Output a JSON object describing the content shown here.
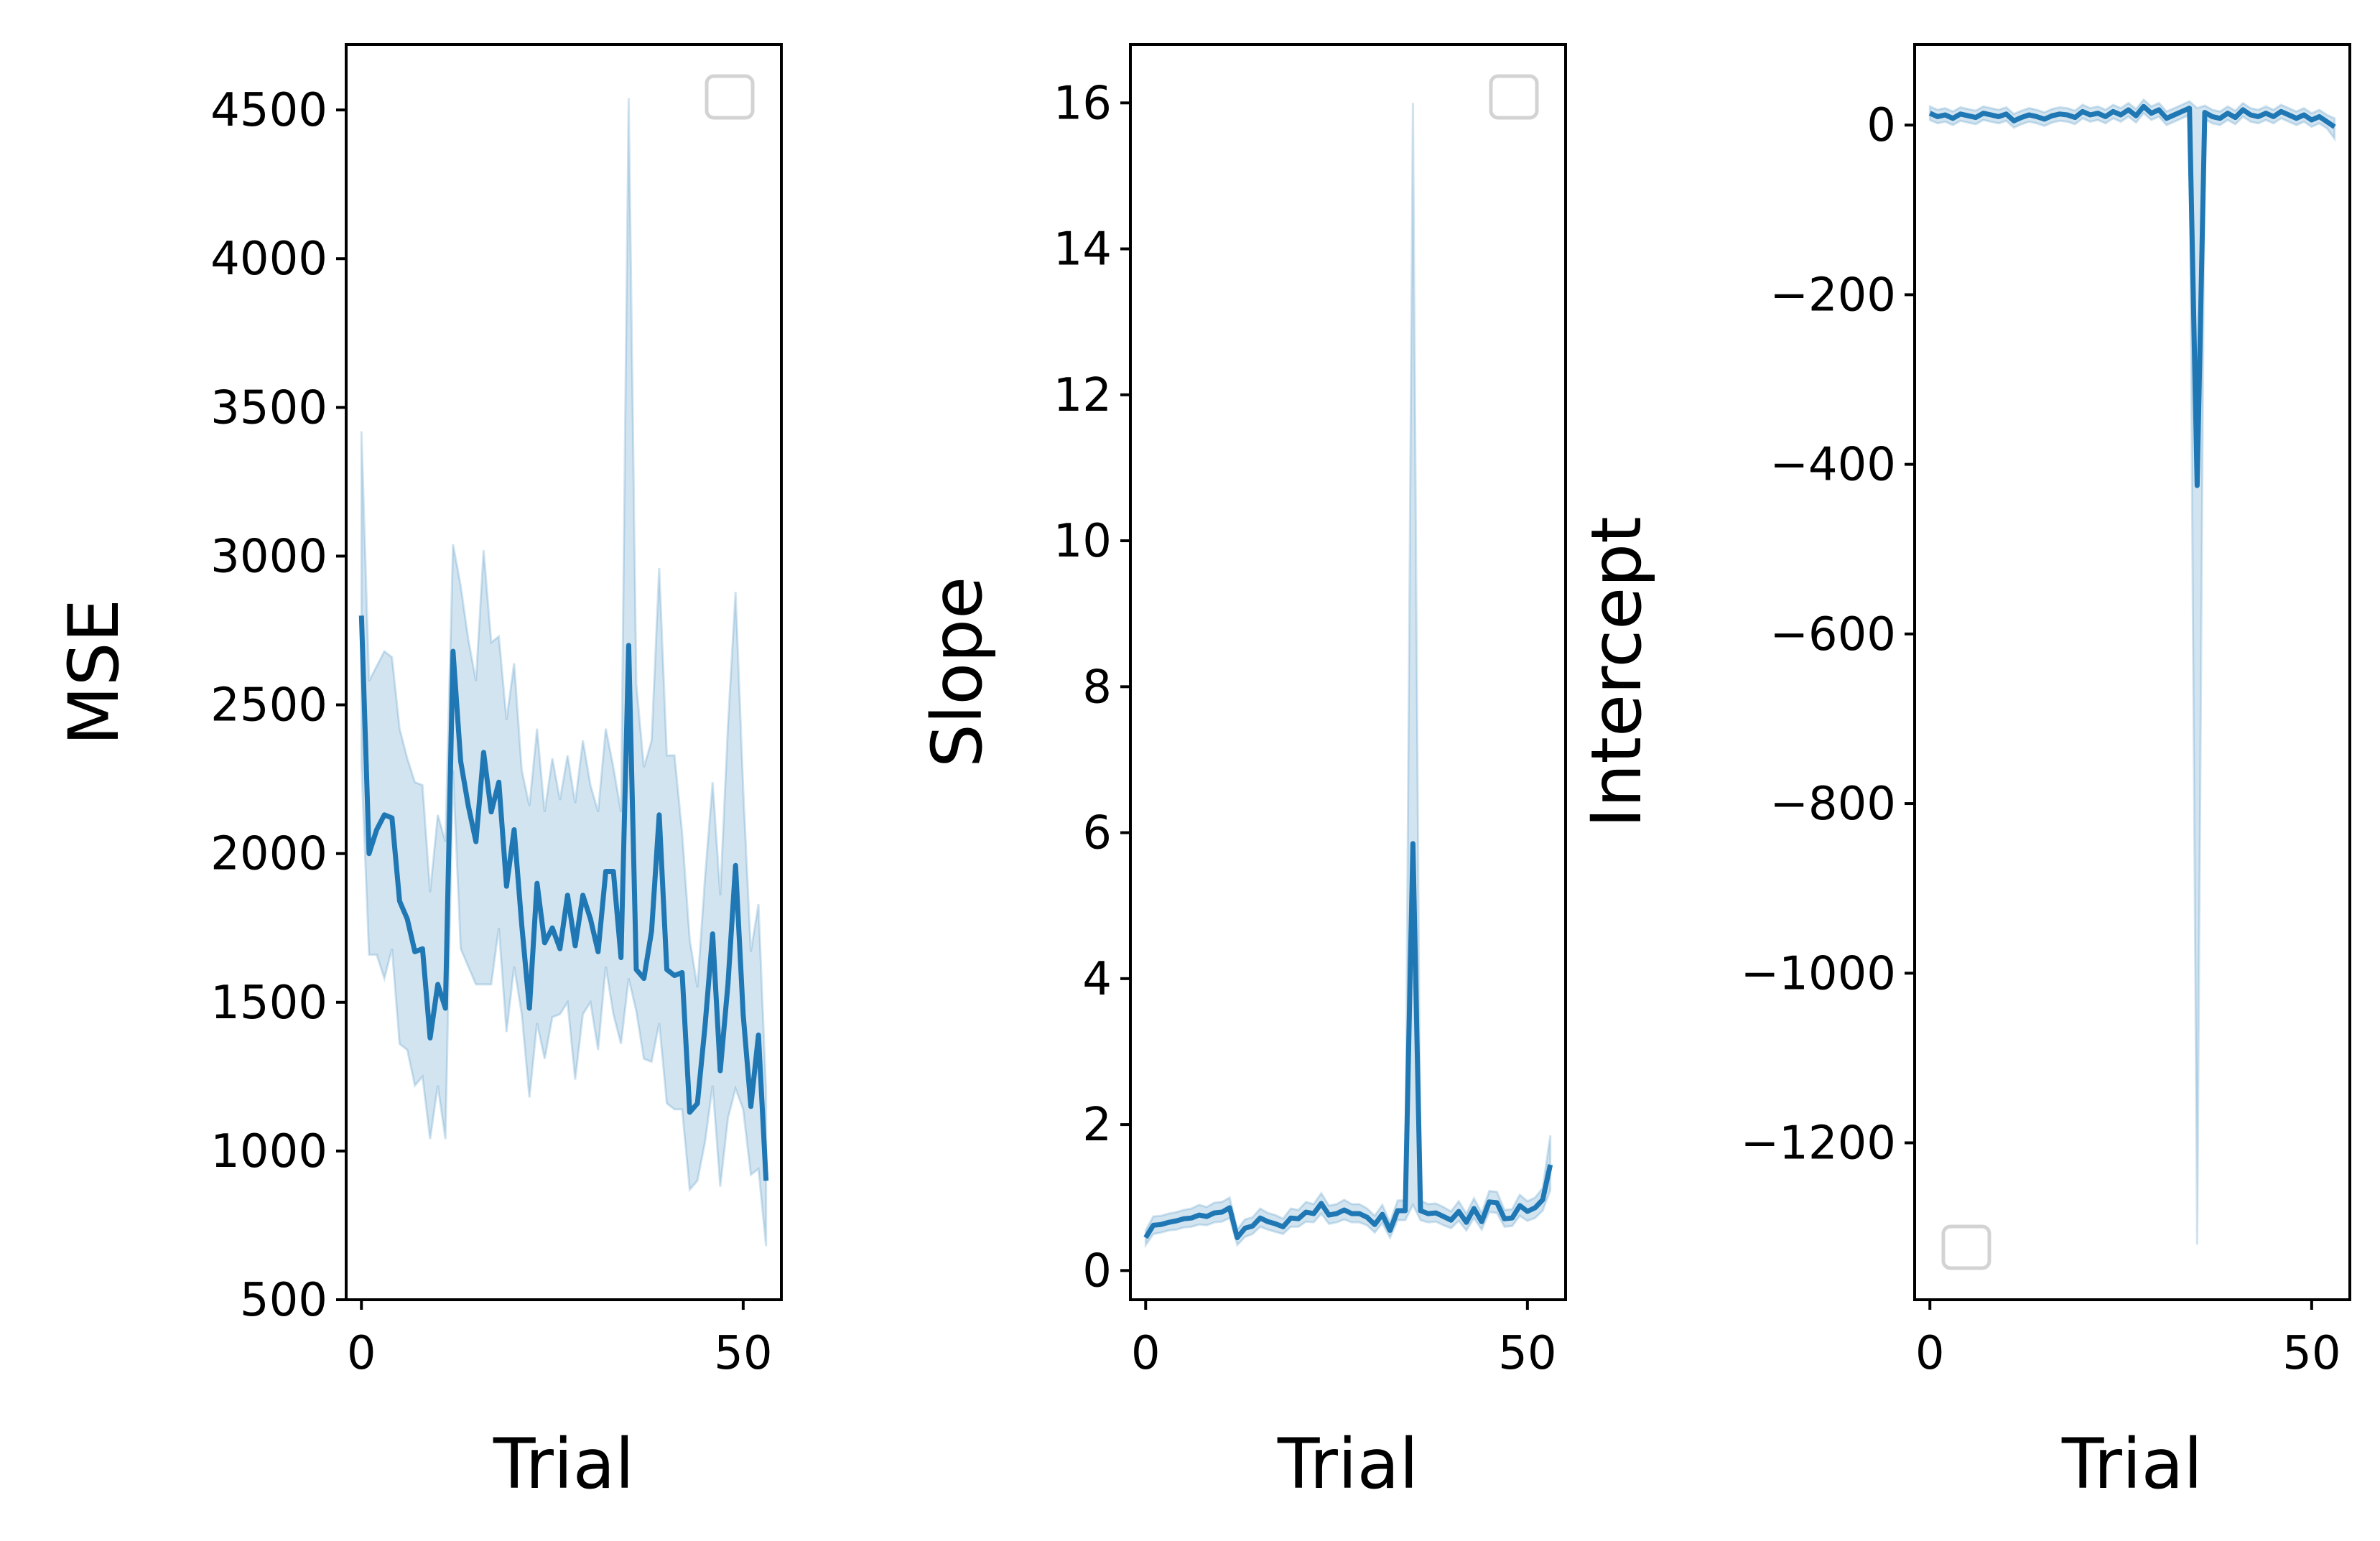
{
  "colors": {
    "line": "#1f77b4",
    "band": "#1f77b4",
    "axes": "#000000",
    "legend_border": "#d3d3d3"
  },
  "chart_data": [
    {
      "type": "line",
      "xlabel": "Trial",
      "ylabel": "MSE",
      "xlim": [
        -2,
        55
      ],
      "ylim": [
        500,
        4720
      ],
      "xticks": [
        0,
        50
      ],
      "xtick_labels": [
        "0",
        "50"
      ],
      "yticks": [
        500,
        1000,
        1500,
        2000,
        2500,
        3000,
        3500,
        4000,
        4500
      ],
      "ytick_labels": [
        "500",
        "1000",
        "1500",
        "2000",
        "2500",
        "3000",
        "3500",
        "4000",
        "4500"
      ],
      "legend": "top-right",
      "grid": false,
      "x": [
        0,
        1,
        2,
        3,
        4,
        5,
        6,
        7,
        8,
        9,
        10,
        11,
        12,
        13,
        14,
        15,
        16,
        17,
        18,
        19,
        20,
        21,
        22,
        23,
        24,
        25,
        26,
        27,
        28,
        29,
        30,
        31,
        32,
        33,
        34,
        35,
        36,
        37,
        38,
        39,
        40,
        41,
        42,
        43,
        44,
        45,
        46,
        47,
        48,
        49,
        50,
        51,
        52,
        53
      ],
      "y": [
        2800,
        2000,
        2080,
        2130,
        2120,
        1840,
        1780,
        1670,
        1680,
        1380,
        1560,
        1480,
        2680,
        2310,
        2160,
        2040,
        2340,
        2140,
        2240,
        1890,
        2080,
        1760,
        1480,
        1900,
        1700,
        1750,
        1680,
        1860,
        1690,
        1860,
        1780,
        1670,
        1940,
        1940,
        1650,
        2700,
        1610,
        1580,
        1740,
        2130,
        1610,
        1590,
        1600,
        1130,
        1160,
        1420,
        1730,
        1270,
        1560,
        1960,
        1460,
        1150,
        1390,
        900
      ],
      "y_lower": [
        2300,
        1660,
        1660,
        1580,
        1680,
        1360,
        1340,
        1220,
        1250,
        1040,
        1220,
        1040,
        2280,
        1680,
        1620,
        1560,
        1560,
        1560,
        1750,
        1400,
        1620,
        1460,
        1180,
        1430,
        1310,
        1450,
        1460,
        1500,
        1240,
        1460,
        1500,
        1340,
        1620,
        1460,
        1360,
        1580,
        1470,
        1310,
        1300,
        1430,
        1160,
        1140,
        1140,
        870,
        900,
        1030,
        1220,
        880,
        1110,
        1210,
        1140,
        920,
        940,
        680
      ],
      "y_upper": [
        3420,
        2580,
        2630,
        2680,
        2660,
        2420,
        2320,
        2240,
        2230,
        1870,
        2130,
        2040,
        3040,
        2900,
        2720,
        2580,
        3020,
        2710,
        2730,
        2450,
        2640,
        2280,
        2160,
        2420,
        2140,
        2320,
        2180,
        2330,
        2170,
        2380,
        2230,
        2140,
        2420,
        2290,
        2140,
        4540,
        2570,
        2290,
        2380,
        2960,
        2330,
        2330,
        2070,
        1710,
        1550,
        1920,
        2240,
        1860,
        2430,
        2880,
        2220,
        1670,
        1830,
        1200
      ]
    },
    {
      "type": "line",
      "xlabel": "Trial",
      "ylabel": "Slope",
      "xlim": [
        -2,
        55
      ],
      "ylim": [
        -0.4,
        16.8
      ],
      "xticks": [
        0,
        50
      ],
      "xtick_labels": [
        "0",
        "50"
      ],
      "yticks": [
        0,
        2,
        4,
        6,
        8,
        10,
        12,
        14,
        16
      ],
      "ytick_labels": [
        "0",
        "2",
        "4",
        "6",
        "8",
        "10",
        "12",
        "14",
        "16"
      ],
      "legend": "top-right",
      "grid": false,
      "x": [
        0,
        1,
        2,
        3,
        4,
        5,
        6,
        7,
        8,
        9,
        10,
        11,
        12,
        13,
        14,
        15,
        16,
        17,
        18,
        19,
        20,
        21,
        22,
        23,
        24,
        25,
        26,
        27,
        28,
        29,
        30,
        31,
        32,
        33,
        34,
        35,
        36,
        37,
        38,
        39,
        40,
        41,
        42,
        43,
        44,
        45,
        46,
        47,
        48,
        49,
        50,
        51,
        52,
        53
      ],
      "y": [
        0.45,
        0.62,
        0.63,
        0.66,
        0.68,
        0.71,
        0.72,
        0.76,
        0.74,
        0.79,
        0.8,
        0.86,
        0.45,
        0.58,
        0.61,
        0.72,
        0.67,
        0.64,
        0.6,
        0.72,
        0.71,
        0.8,
        0.78,
        0.92,
        0.76,
        0.78,
        0.83,
        0.78,
        0.78,
        0.73,
        0.63,
        0.77,
        0.55,
        0.82,
        0.82,
        5.85,
        0.82,
        0.78,
        0.79,
        0.74,
        0.69,
        0.81,
        0.66,
        0.85,
        0.67,
        0.94,
        0.93,
        0.71,
        0.72,
        0.89,
        0.81,
        0.86,
        0.97,
        1.45
      ],
      "y_lower": [
        0.35,
        0.5,
        0.52,
        0.55,
        0.56,
        0.59,
        0.6,
        0.63,
        0.62,
        0.66,
        0.67,
        0.72,
        0.35,
        0.46,
        0.5,
        0.6,
        0.56,
        0.53,
        0.5,
        0.6,
        0.6,
        0.67,
        0.66,
        0.78,
        0.64,
        0.66,
        0.7,
        0.66,
        0.66,
        0.62,
        0.52,
        0.65,
        0.45,
        0.69,
        0.69,
        0.9,
        0.69,
        0.66,
        0.67,
        0.62,
        0.58,
        0.68,
        0.55,
        0.72,
        0.56,
        0.8,
        0.79,
        0.6,
        0.61,
        0.75,
        0.68,
        0.72,
        0.82,
        1.1
      ],
      "y_upper": [
        0.55,
        0.74,
        0.75,
        0.78,
        0.8,
        0.83,
        0.85,
        0.9,
        0.87,
        0.93,
        0.94,
        1.0,
        0.56,
        0.7,
        0.73,
        0.85,
        0.79,
        0.76,
        0.71,
        0.85,
        0.83,
        0.94,
        0.91,
        1.06,
        0.89,
        0.91,
        0.97,
        0.91,
        0.91,
        0.85,
        0.75,
        0.9,
        0.66,
        0.96,
        0.96,
        16.0,
        0.96,
        0.91,
        0.92,
        0.87,
        0.81,
        0.95,
        0.78,
        0.99,
        0.79,
        1.09,
        1.08,
        0.83,
        0.84,
        1.04,
        0.95,
        1.0,
        1.13,
        1.85
      ]
    },
    {
      "type": "line",
      "xlabel": "Trial",
      "ylabel": "Intercept",
      "xlim": [
        -2,
        55
      ],
      "ylim": [
        -1385,
        95
      ],
      "xticks": [
        0,
        50
      ],
      "xtick_labels": [
        "0",
        "50"
      ],
      "yticks": [
        -1200,
        -1000,
        -800,
        -600,
        -400,
        -200,
        0
      ],
      "ytick_labels": [
        "−1200",
        "−1000",
        "−800",
        "−600",
        "−400",
        "−200",
        "0"
      ],
      "legend": "bottom-left",
      "grid": false,
      "x": [
        0,
        1,
        2,
        3,
        4,
        5,
        6,
        7,
        8,
        9,
        10,
        11,
        12,
        13,
        14,
        15,
        16,
        17,
        18,
        19,
        20,
        21,
        22,
        23,
        24,
        25,
        26,
        27,
        28,
        29,
        30,
        31,
        32,
        33,
        34,
        35,
        36,
        37,
        38,
        39,
        40,
        41,
        42,
        43,
        44,
        45,
        46,
        47,
        48,
        49,
        50,
        51,
        52,
        53
      ],
      "y": [
        14,
        10,
        12,
        8,
        13,
        11,
        9,
        14,
        12,
        10,
        13,
        5,
        9,
        12,
        10,
        7,
        11,
        13,
        12,
        9,
        16,
        12,
        14,
        10,
        16,
        12,
        18,
        11,
        22,
        14,
        18,
        8,
        12,
        16,
        20,
        -425,
        15,
        10,
        8,
        14,
        9,
        18,
        12,
        10,
        14,
        10,
        16,
        12,
        8,
        12,
        6,
        10,
        4,
        -2
      ],
      "y_lower": [
        6,
        2,
        4,
        0,
        5,
        3,
        1,
        6,
        4,
        2,
        5,
        -3,
        1,
        4,
        2,
        -1,
        3,
        5,
        4,
        1,
        8,
        4,
        6,
        2,
        8,
        4,
        10,
        3,
        14,
        6,
        10,
        0,
        4,
        8,
        12,
        -1320,
        7,
        2,
        0,
        6,
        1,
        10,
        4,
        2,
        6,
        2,
        8,
        4,
        0,
        4,
        -2,
        2,
        -4,
        -16
      ],
      "y_upper": [
        22,
        18,
        20,
        16,
        21,
        19,
        17,
        22,
        20,
        18,
        21,
        13,
        17,
        20,
        18,
        15,
        19,
        21,
        20,
        17,
        24,
        20,
        22,
        18,
        24,
        20,
        26,
        19,
        30,
        22,
        26,
        16,
        20,
        24,
        28,
        20,
        23,
        18,
        16,
        22,
        17,
        26,
        20,
        18,
        22,
        18,
        24,
        20,
        16,
        20,
        14,
        18,
        12,
        8
      ]
    }
  ]
}
